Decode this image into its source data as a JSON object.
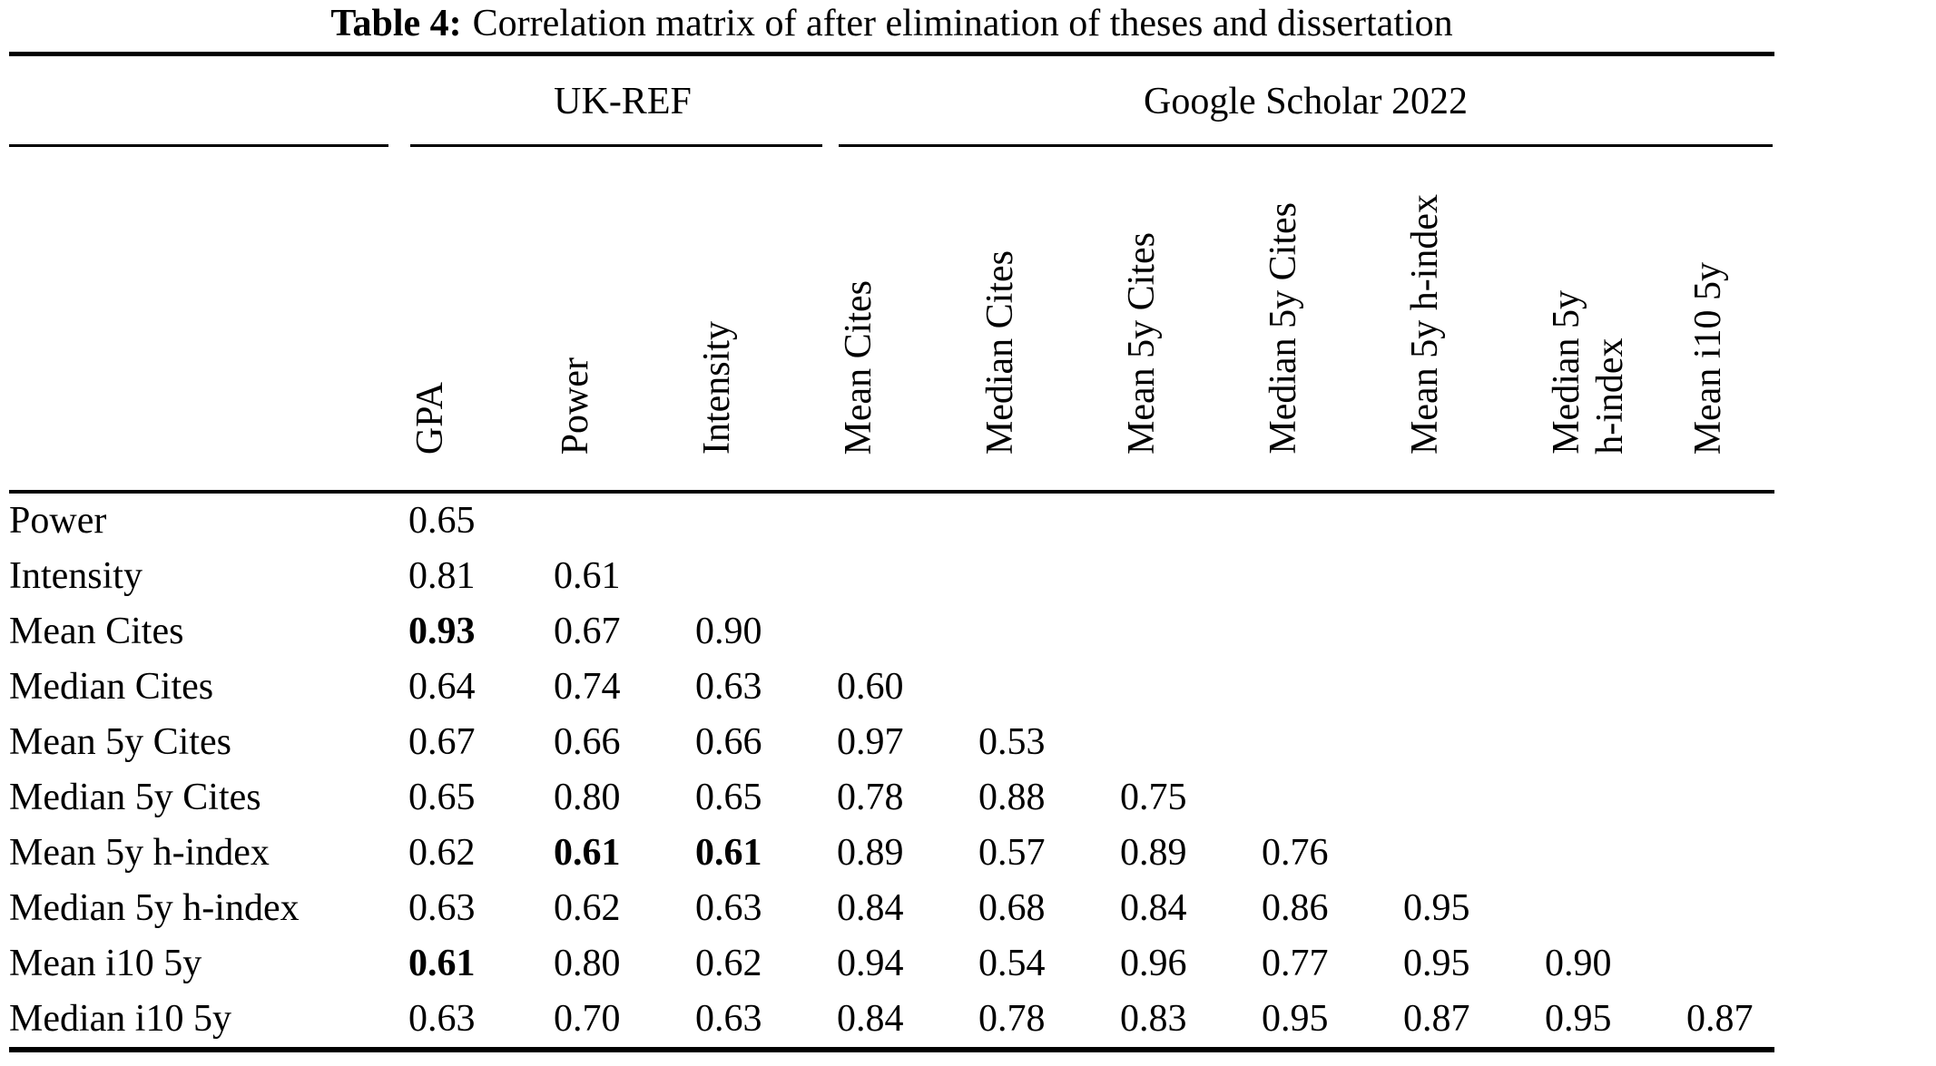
{
  "title": {
    "prefix": "Table 4:",
    "text": "Correlation matrix of after elimination of theses and dissertation"
  },
  "table": {
    "groups": [
      {
        "label": "UK-REF",
        "span": 3
      },
      {
        "label": "Google Scholar 2022",
        "span": 7
      }
    ],
    "columns": [
      {
        "label": "GPA",
        "lines": [
          "GPA"
        ]
      },
      {
        "label": "Power",
        "lines": [
          "Power"
        ]
      },
      {
        "label": "Intensity",
        "lines": [
          "Intensity"
        ]
      },
      {
        "label": "Mean Cites",
        "lines": [
          "Mean Cites"
        ]
      },
      {
        "label": "Median Cites",
        "lines": [
          "Median Cites"
        ]
      },
      {
        "label": "Mean 5y Cites",
        "lines": [
          "Mean 5y Cites"
        ]
      },
      {
        "label": "Median 5y Cites",
        "lines": [
          "Median 5y Cites"
        ]
      },
      {
        "label": "Mean 5y h-index",
        "lines": [
          "Mean 5y h-index"
        ]
      },
      {
        "label": "Median 5y h-index",
        "lines": [
          "Median 5y",
          "h-index"
        ]
      },
      {
        "label": "Mean i10 5y",
        "lines": [
          "Mean i10 5y"
        ]
      }
    ],
    "rows": [
      {
        "label": "Power",
        "values": [
          "0.65"
        ],
        "bold": []
      },
      {
        "label": "Intensity",
        "values": [
          "0.81",
          "0.61"
        ],
        "bold": []
      },
      {
        "label": "Mean Cites",
        "values": [
          "0.93",
          "0.67",
          "0.90"
        ],
        "bold": [
          0
        ]
      },
      {
        "label": "Median Cites",
        "values": [
          "0.64",
          "0.74",
          "0.63",
          "0.60"
        ],
        "bold": []
      },
      {
        "label": "Mean 5y Cites",
        "values": [
          "0.67",
          "0.66",
          "0.66",
          "0.97",
          "0.53"
        ],
        "bold": []
      },
      {
        "label": "Median 5y Cites",
        "values": [
          "0.65",
          "0.80",
          "0.65",
          "0.78",
          "0.88",
          "0.75"
        ],
        "bold": []
      },
      {
        "label": "Mean 5y h-index",
        "values": [
          "0.62",
          "0.61",
          "0.61",
          "0.89",
          "0.57",
          "0.89",
          "0.76"
        ],
        "bold": [
          1,
          2
        ]
      },
      {
        "label": "Median 5y h-index",
        "values": [
          "0.63",
          "0.62",
          "0.63",
          "0.84",
          "0.68",
          "0.84",
          "0.86",
          "0.95"
        ],
        "bold": []
      },
      {
        "label": "Mean i10 5y",
        "values": [
          "0.61",
          "0.80",
          "0.62",
          "0.94",
          "0.54",
          "0.96",
          "0.77",
          "0.95",
          "0.90"
        ],
        "bold": [
          0
        ]
      },
      {
        "label": "Median i10 5y",
        "values": [
          "0.63",
          "0.70",
          "0.63",
          "0.84",
          "0.78",
          "0.83",
          "0.95",
          "0.87",
          "0.95",
          "0.87"
        ],
        "bold": []
      }
    ]
  }
}
